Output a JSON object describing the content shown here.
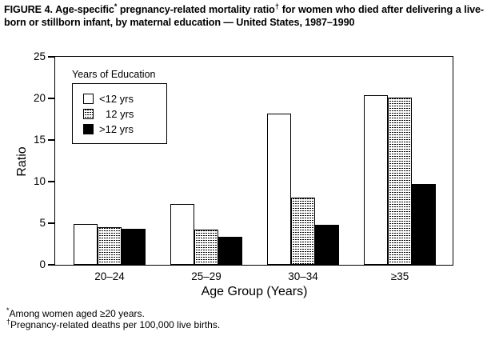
{
  "figure": {
    "title_seg1": "FIGURE 4. Age-specific",
    "title_sup1": "*",
    "title_seg2": " pregnancy-related mortality ratio",
    "title_sup2": "†",
    "title_seg3": " for women who died after delivering a live-born or stillborn infant, by maternal education — United States, 1987–1990"
  },
  "chart_data": {
    "type": "bar",
    "title": "",
    "categories": [
      "20–24",
      "25–29",
      "30–34",
      "≥35"
    ],
    "series": [
      {
        "name": "<12 yrs",
        "fill": "white",
        "values": [
          4.9,
          7.3,
          18.2,
          20.4
        ]
      },
      {
        "name": "12 yrs",
        "fill": "dotted",
        "values": [
          4.5,
          4.2,
          8.1,
          20.1
        ]
      },
      {
        "name": ">12 yrs",
        "fill": "black",
        "values": [
          4.3,
          3.4,
          4.8,
          9.7
        ]
      }
    ],
    "xlabel": "Age Group (Years)",
    "ylabel": "Ratio",
    "ylim": [
      0,
      25
    ],
    "yticks": [
      0,
      5,
      10,
      15,
      20,
      25
    ],
    "grid": "off",
    "legend_position": "upper-left-inside"
  },
  "legend": {
    "title": "Years of Education",
    "items": [
      {
        "label": "<12 yrs",
        "fill": "white"
      },
      {
        "label": "12 yrs",
        "fill": "dotted"
      },
      {
        "label": ">12 yrs",
        "fill": "black"
      }
    ]
  },
  "footnotes": [
    {
      "mark": "*",
      "text": "Among women aged ≥20 years."
    },
    {
      "mark": "†",
      "text": "Pregnancy-related deaths per 100,000 live births."
    }
  ],
  "colors": {
    "foreground": "#000000",
    "background": "#ffffff"
  }
}
